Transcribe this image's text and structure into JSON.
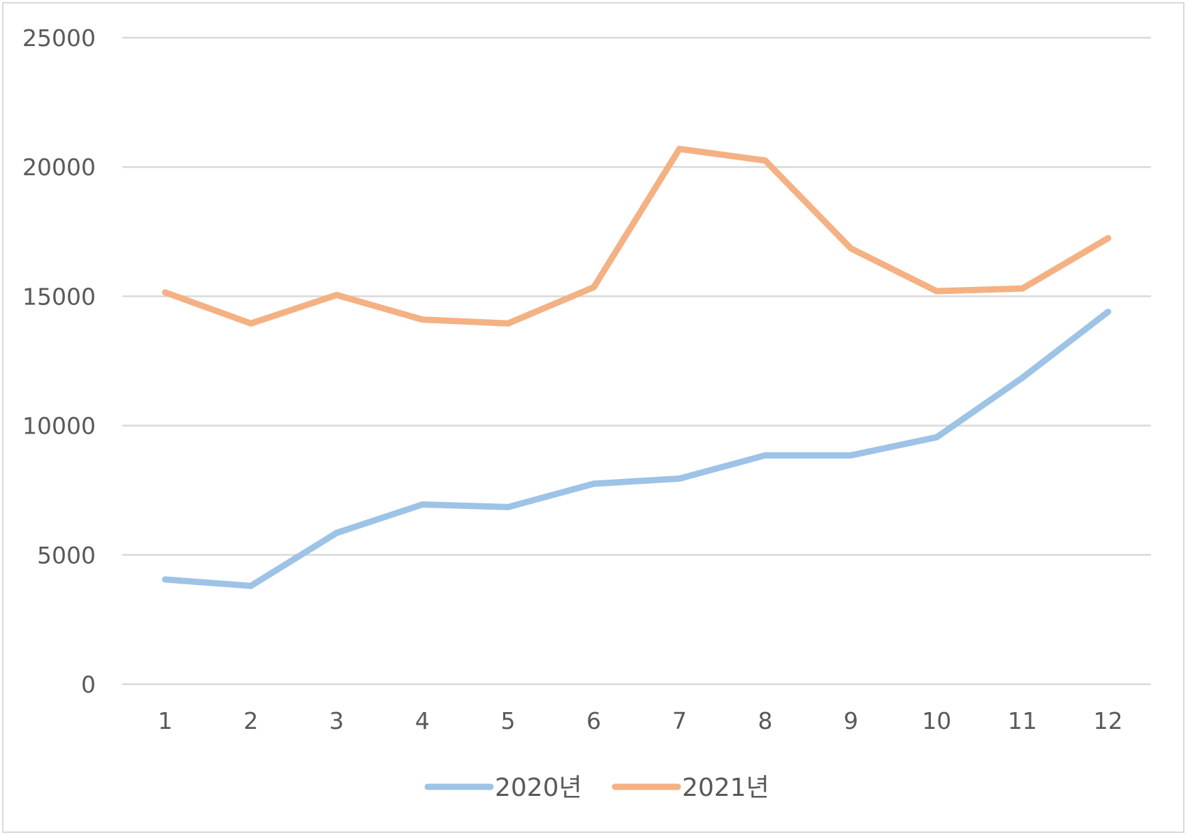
{
  "chart_data": {
    "type": "line",
    "categories": [
      "1",
      "2",
      "3",
      "4",
      "5",
      "6",
      "7",
      "8",
      "9",
      "10",
      "11",
      "12"
    ],
    "series": [
      {
        "name": "2020년",
        "color": "#9dc3e6",
        "values": [
          4050,
          3800,
          5850,
          6950,
          6850,
          7750,
          7950,
          8850,
          8850,
          9550,
          11850,
          14400
        ]
      },
      {
        "name": "2021년",
        "color": "#f4b183",
        "values": [
          15150,
          13950,
          15050,
          14100,
          13950,
          15350,
          20700,
          20250,
          16850,
          15200,
          15300,
          17250
        ]
      }
    ],
    "y_ticks": [
      "0",
      "5000",
      "10000",
      "15000",
      "20000",
      "25000"
    ],
    "ylim": [
      0,
      25000
    ],
    "grid": true,
    "legend_position": "bottom",
    "title": "",
    "xlabel": "",
    "ylabel": ""
  }
}
